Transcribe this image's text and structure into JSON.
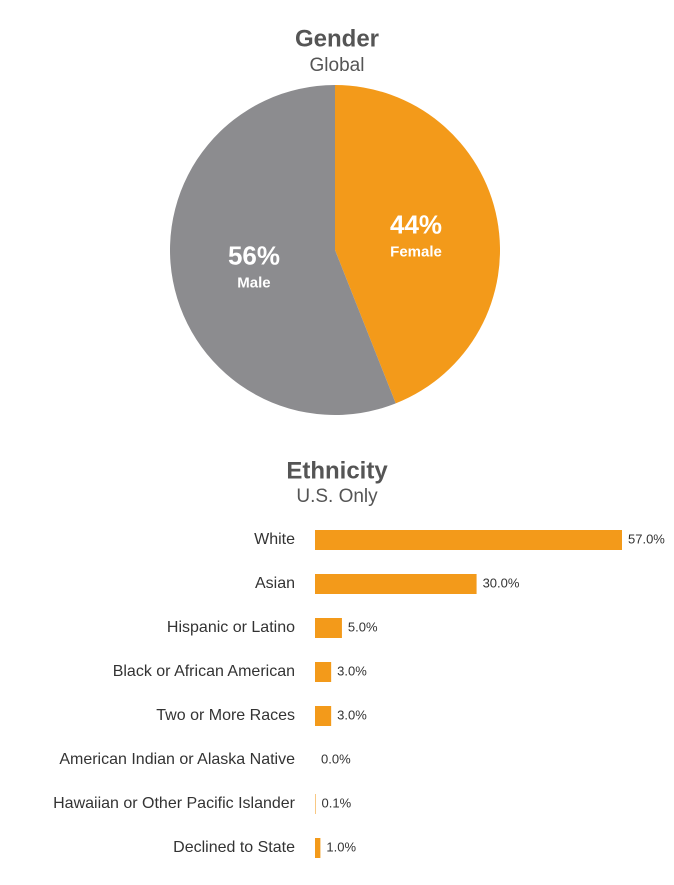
{
  "chart_data": [
    {
      "type": "pie",
      "title": "Gender",
      "subtitle": "Global",
      "categories": [
        "Female",
        "Male"
      ],
      "values": [
        44,
        56
      ],
      "value_labels": [
        "44%",
        "56%"
      ],
      "colors": [
        "#f39a1a",
        "#8c8c8f"
      ]
    },
    {
      "type": "hbar",
      "title": "Ethnicity",
      "subtitle": "U.S. Only",
      "categories": [
        "White",
        "Asian",
        "Hispanic or Latino",
        "Black or African American",
        "Two or More Races",
        "American Indian or Alaska Native",
        "Hawaiian or Other Pacific Islander",
        "Declined to State"
      ],
      "values": [
        57,
        30,
        5,
        3,
        3,
        0,
        0.1,
        1
      ],
      "value_labels": [
        "57.0%",
        "30.0%",
        "5.0%",
        "3.0%",
        "3.0%",
        "0.0%",
        "0.1%",
        "1.0%"
      ],
      "color": "#f39a1a"
    }
  ]
}
